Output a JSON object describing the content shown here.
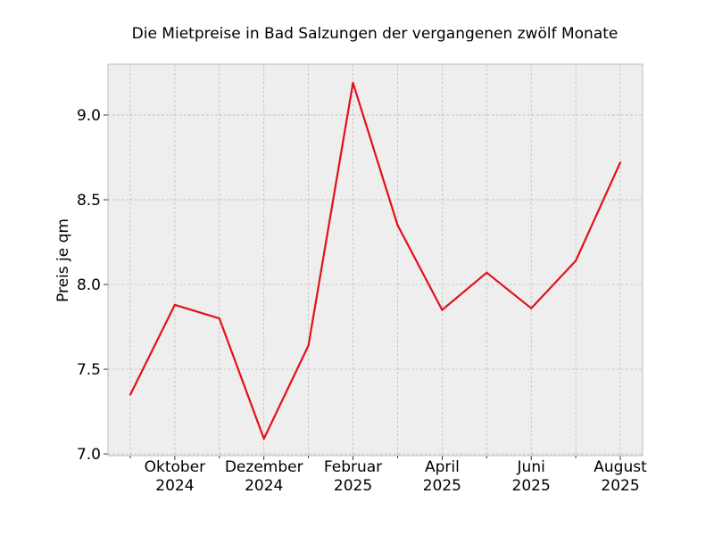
{
  "chart_data": {
    "type": "line",
    "title": "Die Mietpreise in Bad Salzungen der vergangenen zwölf Monate",
    "xlabel": "",
    "ylabel": "Preis je qm",
    "x": [
      "2024-09",
      "2024-10",
      "2024-11",
      "2024-12",
      "2025-01",
      "2025-02",
      "2025-03",
      "2025-04",
      "2025-05",
      "2025-06",
      "2025-07",
      "2025-08"
    ],
    "x_tick_labels": [
      {
        "x": "2024-10",
        "line1": "Oktober",
        "line2": "2024"
      },
      {
        "x": "2024-12",
        "line1": "Dezember",
        "line2": "2024"
      },
      {
        "x": "2025-02",
        "line1": "Februar",
        "line2": "2025"
      },
      {
        "x": "2025-04",
        "line1": "April",
        "line2": "2025"
      },
      {
        "x": "2025-06",
        "line1": "Juni",
        "line2": "2025"
      },
      {
        "x": "2025-08",
        "line1": "August",
        "line2": "2025"
      }
    ],
    "series": [
      {
        "values": [
          7.35,
          7.88,
          7.8,
          7.09,
          7.64,
          9.19,
          8.35,
          7.85,
          8.07,
          7.86,
          8.14,
          8.72
        ]
      }
    ],
    "y_ticks": [
      7.0,
      7.5,
      8.0,
      8.5,
      9.0
    ],
    "y_tick_labels": [
      "7.0",
      "7.5",
      "8.0",
      "8.5",
      "9.0"
    ],
    "ylim": [
      6.99,
      9.3
    ],
    "grid": true,
    "colors": {
      "line": "#e3101b",
      "background": "#eeeeee",
      "grid": "#b0b0b0",
      "frame": "#bcbcbc"
    }
  }
}
